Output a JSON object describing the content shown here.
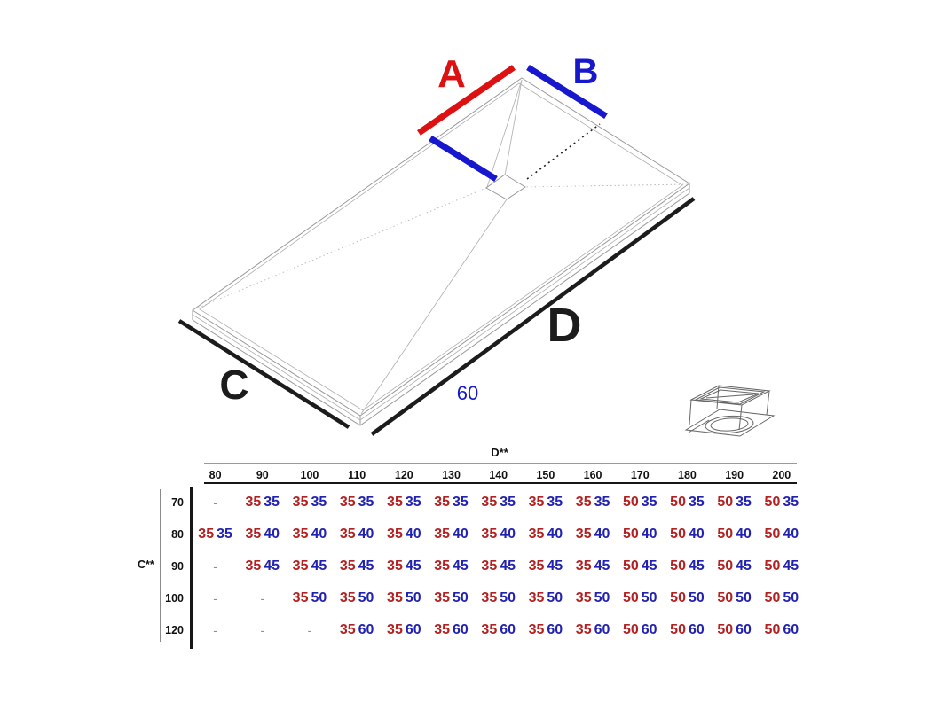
{
  "diagram": {
    "labels": {
      "side_a": "A",
      "side_b": "B",
      "side_c": "C",
      "side_d": "D",
      "drain_distance": "60"
    },
    "icons": [
      "drain-icon"
    ],
    "colors": {
      "dim_red": "#dd1111",
      "dim_blue": "#1717cd",
      "outline_gray": "#999999",
      "thick_black": "#1c1c1c"
    }
  },
  "table": {
    "col_axis_label": "D**",
    "row_axis_label": "C**",
    "dash": "-",
    "colors": {
      "first_value": "#b22222",
      "second_value": "#2222b0",
      "header_text": "#111111"
    },
    "columns": [
      "80",
      "90",
      "100",
      "110",
      "120",
      "130",
      "140",
      "150",
      "160",
      "170",
      "180",
      "190",
      "200"
    ],
    "rows": [
      {
        "label": "70",
        "cells": [
          null,
          [
            "35",
            "35"
          ],
          [
            "35",
            "35"
          ],
          [
            "35",
            "35"
          ],
          [
            "35",
            "35"
          ],
          [
            "35",
            "35"
          ],
          [
            "35",
            "35"
          ],
          [
            "35",
            "35"
          ],
          [
            "35",
            "35"
          ],
          [
            "50",
            "35"
          ],
          [
            "50",
            "35"
          ],
          [
            "50",
            "35"
          ],
          [
            "50",
            "35"
          ]
        ]
      },
      {
        "label": "80",
        "cells": [
          [
            "35",
            "35"
          ],
          [
            "35",
            "40"
          ],
          [
            "35",
            "40"
          ],
          [
            "35",
            "40"
          ],
          [
            "35",
            "40"
          ],
          [
            "35",
            "40"
          ],
          [
            "35",
            "40"
          ],
          [
            "35",
            "40"
          ],
          [
            "35",
            "40"
          ],
          [
            "50",
            "40"
          ],
          [
            "50",
            "40"
          ],
          [
            "50",
            "40"
          ],
          [
            "50",
            "40"
          ]
        ]
      },
      {
        "label": "90",
        "cells": [
          null,
          [
            "35",
            "45"
          ],
          [
            "35",
            "45"
          ],
          [
            "35",
            "45"
          ],
          [
            "35",
            "45"
          ],
          [
            "35",
            "45"
          ],
          [
            "35",
            "45"
          ],
          [
            "35",
            "45"
          ],
          [
            "35",
            "45"
          ],
          [
            "50",
            "45"
          ],
          [
            "50",
            "45"
          ],
          [
            "50",
            "45"
          ],
          [
            "50",
            "45"
          ]
        ]
      },
      {
        "label": "100",
        "cells": [
          null,
          null,
          [
            "35",
            "50"
          ],
          [
            "35",
            "50"
          ],
          [
            "35",
            "50"
          ],
          [
            "35",
            "50"
          ],
          [
            "35",
            "50"
          ],
          [
            "35",
            "50"
          ],
          [
            "35",
            "50"
          ],
          [
            "50",
            "50"
          ],
          [
            "50",
            "50"
          ],
          [
            "50",
            "50"
          ],
          [
            "50",
            "50"
          ]
        ]
      },
      {
        "label": "120",
        "cells": [
          null,
          null,
          null,
          [
            "35",
            "60"
          ],
          [
            "35",
            "60"
          ],
          [
            "35",
            "60"
          ],
          [
            "35",
            "60"
          ],
          [
            "35",
            "60"
          ],
          [
            "35",
            "60"
          ],
          [
            "50",
            "60"
          ],
          [
            "50",
            "60"
          ],
          [
            "50",
            "60"
          ],
          [
            "50",
            "60"
          ]
        ]
      }
    ]
  }
}
